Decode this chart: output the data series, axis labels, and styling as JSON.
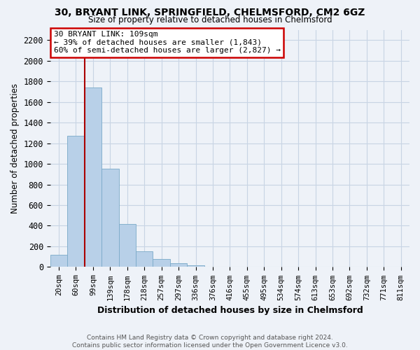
{
  "title_line1": "30, BRYANT LINK, SPRINGFIELD, CHELMSFORD, CM2 6GZ",
  "title_line2": "Size of property relative to detached houses in Chelmsford",
  "xlabel": "Distribution of detached houses by size in Chelmsford",
  "ylabel": "Number of detached properties",
  "bar_labels": [
    "20sqm",
    "60sqm",
    "99sqm",
    "139sqm",
    "178sqm",
    "218sqm",
    "257sqm",
    "297sqm",
    "336sqm",
    "376sqm",
    "416sqm",
    "455sqm",
    "495sqm",
    "534sqm",
    "574sqm",
    "613sqm",
    "653sqm",
    "692sqm",
    "732sqm",
    "771sqm",
    "811sqm"
  ],
  "bar_values": [
    120,
    1270,
    1740,
    950,
    415,
    150,
    75,
    35,
    15,
    0,
    0,
    0,
    0,
    0,
    0,
    0,
    0,
    0,
    0,
    0,
    0
  ],
  "bar_color": "#b8d0e8",
  "bar_edge_color": "#7aaac8",
  "vline_color": "#aa0000",
  "ylim": [
    0,
    2300
  ],
  "yticks": [
    0,
    200,
    400,
    600,
    800,
    1000,
    1200,
    1400,
    1600,
    1800,
    2000,
    2200
  ],
  "annotation_title": "30 BRYANT LINK: 109sqm",
  "annotation_line2": "← 39% of detached houses are smaller (1,843)",
  "annotation_line3": "60% of semi-detached houses are larger (2,827) →",
  "footer_line1": "Contains HM Land Registry data © Crown copyright and database right 2024.",
  "footer_line2": "Contains public sector information licensed under the Open Government Licence v3.0.",
  "grid_color": "#c8d4e4",
  "background_color": "#eef2f8"
}
